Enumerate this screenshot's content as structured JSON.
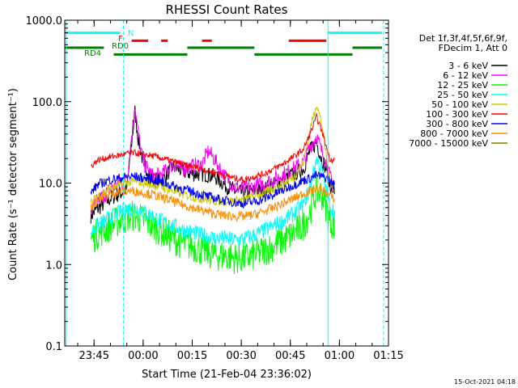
{
  "chart_data": {
    "type": "line",
    "title": "RHESSI Count Rates",
    "xlabel": "Start Time (21-Feb-04 23:36:02)",
    "ylabel": "Count Rate (s⁻¹ detector segment⁻¹)",
    "y_scale": "log",
    "ylim": [
      0.1,
      1000
    ],
    "xlim": [
      "23:36:02",
      "01:15:00"
    ],
    "y_ticks": [
      {
        "value": 0.1,
        "label": "0.1"
      },
      {
        "value": 1,
        "label": "1.0"
      },
      {
        "value": 10,
        "label": "10.0"
      },
      {
        "value": 100,
        "label": "100.0"
      },
      {
        "value": 1000,
        "label": "1000.0"
      }
    ],
    "x_ticks": [
      "23:45",
      "00:00",
      "00:15",
      "00:30",
      "00:45",
      "01:00",
      "01:15"
    ],
    "legend_title_lines": [
      "Det 1f,3f,4f,5f,6f,9f,",
      "FDecim 1, Att 0"
    ],
    "legend_position": "right",
    "timestamp": "15-Oct-2021 04:18",
    "x_time_points": [
      "23:44:00",
      "23:46:00",
      "23:50:00",
      "23:53:00",
      "23:55:00",
      "23:57:30",
      "23:58:30",
      "00:00:00",
      "00:03:00",
      "00:06:00",
      "00:09:00",
      "00:12:00",
      "00:15:00",
      "00:18:00",
      "00:20:00",
      "00:22:00",
      "00:25:00",
      "00:28:00",
      "00:31:00",
      "00:34:00",
      "00:37:00",
      "00:40:00",
      "00:43:00",
      "00:46:00",
      "00:49:00",
      "00:51:00",
      "00:53:00",
      "00:54:30",
      "00:56:00",
      "00:57:00",
      "00:58:30"
    ],
    "series": [
      {
        "name": "3 - 6 keV",
        "color": "#000000",
        "noise": 0.1,
        "values": [
          4.0,
          4.8,
          6.5,
          7.5,
          8.5,
          75,
          35,
          18,
          11,
          11,
          16,
          14,
          13,
          13,
          12.5,
          12,
          9.5,
          8.0,
          7.5,
          8.0,
          8.5,
          9.5,
          11,
          13,
          15,
          25,
          32,
          20,
          15,
          9.5,
          8.0
        ]
      },
      {
        "name": "6 - 12 keV",
        "color": "#ff00ff",
        "noise": 0.1,
        "values": [
          4.5,
          6.0,
          8.5,
          10,
          11,
          90,
          40,
          18,
          12,
          13,
          17,
          15,
          16,
          17,
          25,
          19,
          12,
          9.0,
          8.5,
          9.0,
          10,
          11,
          13,
          15,
          18,
          28,
          38,
          25,
          18,
          12,
          9.0
        ]
      },
      {
        "name": "12 - 25 keV",
        "color": "#00ff00",
        "noise": 0.2,
        "values": [
          2.0,
          2.4,
          3.0,
          3.5,
          3.8,
          4.0,
          3.8,
          3.5,
          3.0,
          2.5,
          2.1,
          1.8,
          1.7,
          1.5,
          1.4,
          1.3,
          1.3,
          1.2,
          1.2,
          1.3,
          1.5,
          1.7,
          2.0,
          2.4,
          3.0,
          4.5,
          8.0,
          7.5,
          5.0,
          3.5,
          3.0
        ]
      },
      {
        "name": "25 - 50 keV",
        "color": "#00ffff",
        "noise": 0.1,
        "values": [
          2.5,
          3.0,
          3.8,
          4.4,
          4.8,
          5.0,
          4.8,
          4.5,
          3.9,
          3.4,
          3.0,
          2.7,
          2.5,
          2.3,
          2.2,
          2.1,
          2.1,
          2.0,
          2.1,
          2.3,
          2.6,
          3.0,
          3.5,
          4.2,
          5.5,
          9.0,
          20,
          15,
          8.0,
          5.5,
          4.5
        ]
      },
      {
        "name": "50 - 100 keV",
        "color": "#cccc00",
        "noise": 0.06,
        "values": [
          5.5,
          7.0,
          8.5,
          9.5,
          10,
          10.5,
          10.5,
          10,
          9.5,
          8.8,
          8.0,
          7.3,
          6.8,
          6.4,
          6.2,
          6.0,
          6.0,
          6.0,
          6.3,
          6.9,
          7.6,
          8.5,
          9.8,
          12,
          18,
          45,
          95,
          55,
          22,
          11,
          9.0
        ]
      },
      {
        "name": "100 - 300 keV",
        "color": "#ff0000",
        "noise": 0.04,
        "values": [
          16,
          19,
          21,
          22,
          23,
          23.5,
          23,
          22.5,
          21.5,
          20,
          18.5,
          17,
          16,
          15,
          14,
          13.5,
          12.5,
          11.5,
          11,
          12,
          13,
          15,
          17.5,
          21,
          26,
          40,
          65,
          45,
          28,
          20,
          19
        ]
      },
      {
        "name": "300 - 800 keV",
        "color": "#0000ff",
        "noise": 0.06,
        "values": [
          7.5,
          9.5,
          11,
          11.5,
          12,
          12,
          11.8,
          11.5,
          11,
          10.2,
          9.3,
          8.5,
          7.8,
          7.2,
          6.8,
          6.5,
          6.1,
          5.8,
          5.6,
          5.9,
          6.4,
          7.2,
          8.3,
          9.5,
          10.8,
          11.5,
          12.5,
          12,
          11.5,
          10.5,
          9.5
        ]
      },
      {
        "name": "800 - 7000 keV",
        "color": "#ff8c00",
        "noise": 0.06,
        "values": [
          5.0,
          6.3,
          7.3,
          7.8,
          8.0,
          8.0,
          7.8,
          7.6,
          7.2,
          6.6,
          6.0,
          5.4,
          5.0,
          4.6,
          4.4,
          4.2,
          4.0,
          3.9,
          3.9,
          4.1,
          4.5,
          5.0,
          5.7,
          6.5,
          7.4,
          8.0,
          8.6,
          8.2,
          7.7,
          7.0,
          6.4
        ]
      },
      {
        "name": "7000 - 15000 keV",
        "color": "#808000",
        "noise": 0.04,
        "values": [
          null,
          null,
          null,
          null,
          null,
          null,
          null,
          null,
          null,
          null,
          null,
          null,
          null,
          null,
          null,
          null,
          null,
          null,
          null,
          null,
          null,
          null,
          null,
          null,
          null,
          null,
          null,
          null,
          null,
          null,
          null
        ]
      }
    ],
    "attenuator_flags": [
      {
        "label": "N",
        "color": "#00ffff",
        "y_value": 700,
        "segments": [
          [
            "23:36:02",
            "23:53:00"
          ],
          [
            "00:56:30",
            "01:13:00"
          ]
        ]
      },
      {
        "label": "F",
        "color": "#ff0000",
        "y_value": 560,
        "segments": [
          [
            "23:56:30",
            "00:01:30"
          ],
          [
            "00:05:30",
            "00:07:30"
          ],
          [
            "00:18:00",
            "00:21:00"
          ],
          [
            "00:44:30",
            "00:56:00"
          ]
        ]
      },
      {
        "label": "RD0",
        "color": "#008000",
        "y_value": 460,
        "segments": [
          [
            "23:36:02",
            "23:48:00"
          ],
          [
            "00:13:30",
            "00:34:00"
          ],
          [
            "01:04:00",
            "01:13:00"
          ]
        ]
      },
      {
        "label": "RD4",
        "color": "#008000",
        "y_value": 380,
        "segments": [
          [
            "23:51:00",
            "00:13:30"
          ],
          [
            "00:34:00",
            "01:04:00"
          ]
        ]
      }
    ],
    "vertical_markers": [
      {
        "time": "23:36:30",
        "color": "#00ffff",
        "style": "solid"
      },
      {
        "time": "23:54:00",
        "color": "#00ffff",
        "style": "dashed"
      },
      {
        "time": "00:56:30",
        "color": "#00ffff",
        "style": "solid"
      },
      {
        "time": "01:13:30",
        "color": "#00ffff",
        "style": "dashed"
      }
    ]
  }
}
